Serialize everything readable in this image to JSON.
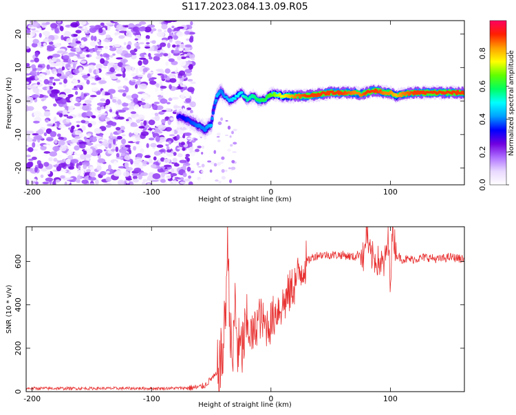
{
  "page_title": "S117.2023.084.13.09.R05",
  "chart_data": [
    {
      "type": "heatmap",
      "title": "S117.2023.084.13.09.R05",
      "xlabel": "Height of straight line (km)",
      "ylabel": "Frequency (Hz)",
      "xlim": [
        -205,
        162
      ],
      "ylim": [
        -25,
        24
      ],
      "x_ticks": [
        -200,
        -100,
        0,
        100
      ],
      "y_ticks": [
        -20,
        -10,
        0,
        10,
        20
      ],
      "colorbar": {
        "label": "Normalized spectral amplitude",
        "range": [
          0,
          1
        ],
        "ticks": [
          0.0,
          0.2,
          0.4,
          0.6,
          0.8
        ],
        "colors": [
          "#ffffff",
          "#e8d8ff",
          "#b070ff",
          "#7000e0",
          "#0000ff",
          "#00a0ff",
          "#00ffff",
          "#00ff60",
          "#60ff00",
          "#ffff00",
          "#ffa000",
          "#ff2000",
          "#ff0060"
        ]
      },
      "ridge": {
        "x": [
          -78,
          -70,
          -60,
          -55,
          -50,
          -48,
          -45,
          -42,
          -40,
          -35,
          -30,
          -25,
          -20,
          -15,
          -10,
          -5,
          0,
          5,
          10,
          20,
          30,
          40,
          50,
          60,
          70,
          75,
          80,
          85,
          90,
          95,
          100,
          105,
          110,
          120,
          130,
          140,
          150,
          162
        ],
        "y": [
          -4.5,
          -5.5,
          -7.5,
          -8.5,
          -7.0,
          -2.5,
          1.5,
          3.0,
          2.0,
          0.0,
          1.0,
          2.5,
          0.5,
          1.5,
          0.0,
          0.5,
          2.0,
          2.0,
          1.5,
          1.5,
          1.5,
          2.0,
          2.5,
          2.5,
          2.5,
          2.0,
          2.5,
          3.0,
          3.0,
          2.5,
          2.5,
          1.5,
          2.0,
          2.5,
          2.5,
          2.5,
          2.5,
          2.5
        ],
        "amplitude": [
          0.3,
          0.35,
          0.4,
          0.4,
          0.45,
          0.35,
          0.45,
          0.4,
          0.4,
          0.45,
          0.5,
          0.5,
          0.55,
          0.55,
          0.6,
          0.6,
          0.65,
          0.7,
          0.75,
          0.85,
          0.9,
          0.9,
          0.9,
          0.9,
          0.85,
          0.85,
          0.9,
          0.9,
          0.9,
          0.85,
          0.85,
          0.8,
          0.85,
          0.9,
          0.9,
          0.9,
          0.9,
          0.9
        ]
      },
      "noise_region": {
        "x_range": [
          -205,
          -80
        ],
        "amplitude_max": 0.25
      }
    },
    {
      "type": "line",
      "xlabel": "Height of straight line (km)",
      "ylabel": "SNR (10 * v/v)",
      "xlim": [
        -205,
        162
      ],
      "ylim": [
        0,
        760
      ],
      "x_ticks": [
        -200,
        -100,
        0,
        100
      ],
      "y_ticks": [
        0,
        200,
        400,
        600
      ],
      "color": "#e83030",
      "series": [
        {
          "x": [
            -205,
            -180,
            -150,
            -120,
            -90,
            -70,
            -60,
            -55,
            -50,
            -45,
            -40,
            -38,
            -36,
            -34,
            -32,
            -30,
            -28,
            -25,
            -20,
            -15,
            -10,
            -5,
            0,
            5,
            10,
            15,
            20,
            25,
            30,
            35,
            40,
            50,
            60,
            70,
            75,
            78,
            80,
            82,
            85,
            90,
            95,
            98,
            100,
            102,
            105,
            110,
            120,
            130,
            140,
            150,
            162
          ],
          "y": [
            15,
            15,
            15,
            15,
            15,
            17,
            20,
            30,
            60,
            80,
            180,
            400,
            700,
            250,
            120,
            420,
            200,
            180,
            300,
            250,
            350,
            300,
            320,
            380,
            400,
            450,
            500,
            560,
            600,
            620,
            630,
            630,
            630,
            620,
            640,
            610,
            760,
            640,
            620,
            600,
            580,
            700,
            520,
            760,
            630,
            610,
            610,
            620,
            610,
            620,
            610
          ]
        }
      ]
    }
  ]
}
